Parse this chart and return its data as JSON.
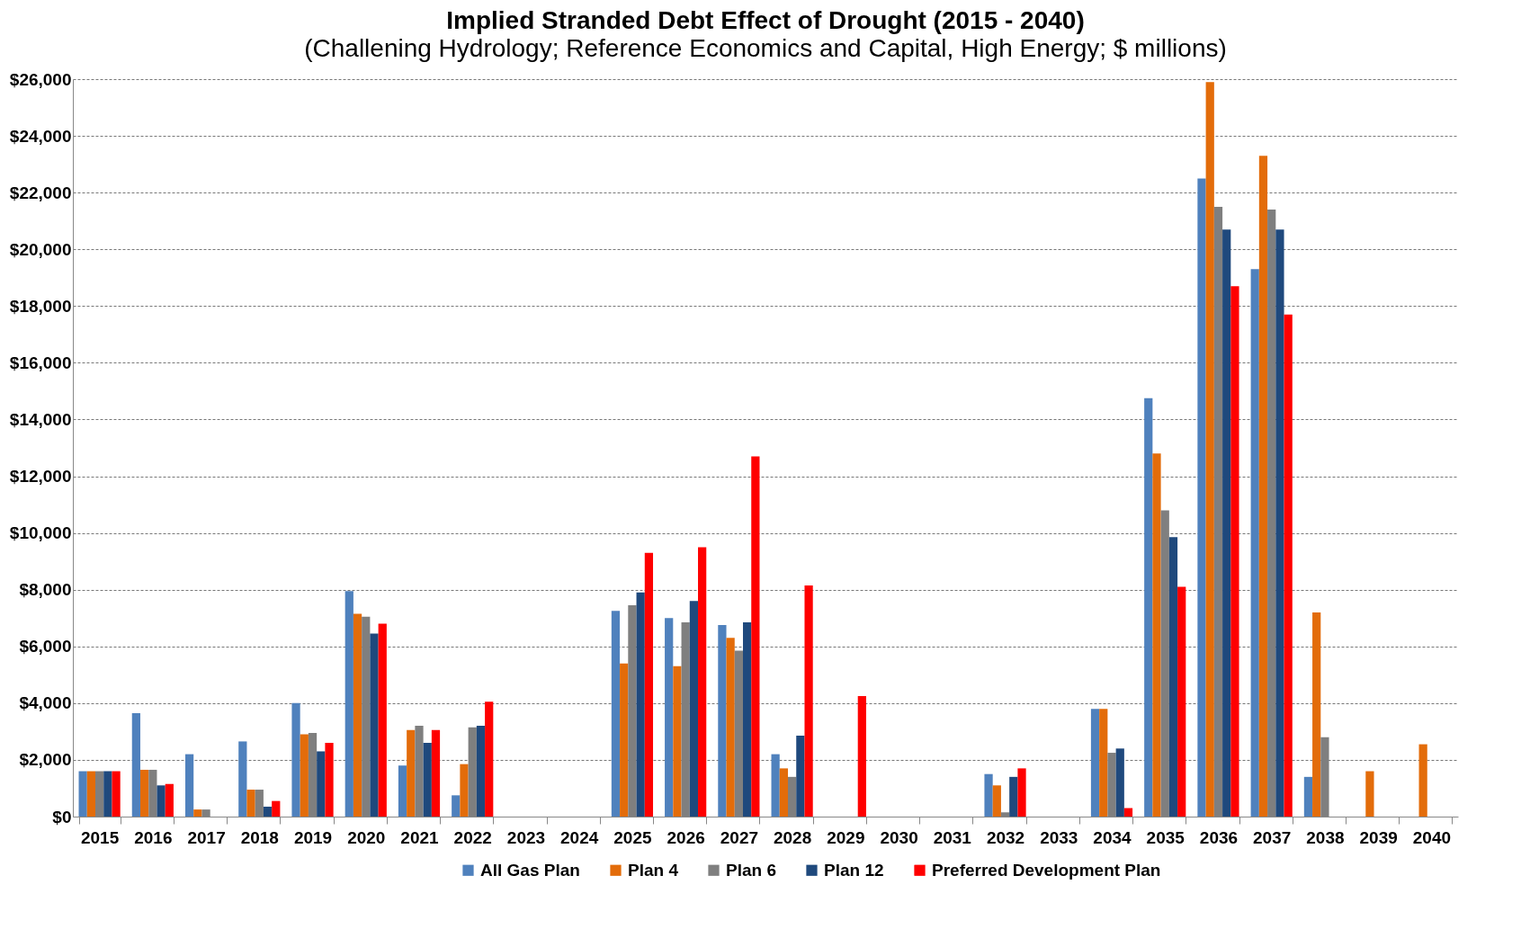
{
  "chart_data": {
    "type": "bar",
    "title": "Implied Stranded Debt Effect of Drought (2015 - 2040)",
    "subtitle": "(Challening Hydrology; Reference Economics and Capital, High Energy; $ millions)",
    "categories": [
      "2015",
      "2016",
      "2017",
      "2018",
      "2019",
      "2020",
      "2021",
      "2022",
      "2023",
      "2024",
      "2025",
      "2026",
      "2027",
      "2028",
      "2029",
      "2030",
      "2031",
      "2032",
      "2033",
      "2034",
      "2035",
      "2036",
      "2037",
      "2038",
      "2039",
      "2040"
    ],
    "series": [
      {
        "name": "All Gas Plan",
        "color": "#4f81bd",
        "values": [
          1600,
          3650,
          2200,
          2650,
          4000,
          7950,
          1800,
          750,
          null,
          null,
          7250,
          7000,
          6750,
          2200,
          null,
          null,
          null,
          1500,
          null,
          3800,
          14750,
          22500,
          19300,
          1400,
          null,
          null
        ]
      },
      {
        "name": "Plan 4",
        "color": "#e36c0a",
        "values": [
          1600,
          1650,
          250,
          950,
          2900,
          7150,
          3050,
          1850,
          null,
          null,
          5400,
          5300,
          6300,
          1700,
          null,
          null,
          null,
          1100,
          null,
          3800,
          12800,
          25900,
          23300,
          7200,
          1600,
          2550
        ]
      },
      {
        "name": "Plan 6",
        "color": "#7f7f7f",
        "values": [
          1600,
          1650,
          250,
          950,
          2950,
          7050,
          3200,
          3150,
          null,
          null,
          7450,
          6850,
          5850,
          1400,
          null,
          null,
          null,
          150,
          null,
          2250,
          10800,
          21500,
          21400,
          2800,
          null,
          null
        ]
      },
      {
        "name": "Plan 12",
        "color": "#1f497d",
        "values": [
          1600,
          1100,
          null,
          350,
          2300,
          6450,
          2600,
          3200,
          null,
          null,
          7900,
          7600,
          6850,
          2850,
          null,
          null,
          null,
          1400,
          null,
          2400,
          9850,
          20700,
          20700,
          null,
          null,
          null
        ]
      },
      {
        "name": "Preferred Development Plan",
        "color": "#ff0000",
        "values": [
          1600,
          1150,
          null,
          550,
          2600,
          6800,
          3050,
          4050,
          null,
          null,
          9300,
          9500,
          12700,
          8150,
          4250,
          null,
          null,
          1700,
          null,
          300,
          8100,
          18700,
          17700,
          null,
          null,
          null
        ]
      }
    ],
    "ylim": [
      0,
      26000
    ],
    "yticks": [
      {
        "value": 0,
        "label": "$0"
      },
      {
        "value": 2000,
        "label": "$2,000"
      },
      {
        "value": 4000,
        "label": "$4,000"
      },
      {
        "value": 6000,
        "label": "$6,000"
      },
      {
        "value": 8000,
        "label": "$8,000"
      },
      {
        "value": 10000,
        "label": "$10,000"
      },
      {
        "value": 12000,
        "label": "$12,000"
      },
      {
        "value": 14000,
        "label": "$14,000"
      },
      {
        "value": 16000,
        "label": "$16,000"
      },
      {
        "value": 18000,
        "label": "$18,000"
      },
      {
        "value": 20000,
        "label": "$20,000"
      },
      {
        "value": 22000,
        "label": "$22,000"
      },
      {
        "value": 24000,
        "label": "$24,000"
      },
      {
        "value": 26000,
        "label": "$26,000"
      }
    ],
    "grid": "y",
    "legend": "bottom"
  }
}
